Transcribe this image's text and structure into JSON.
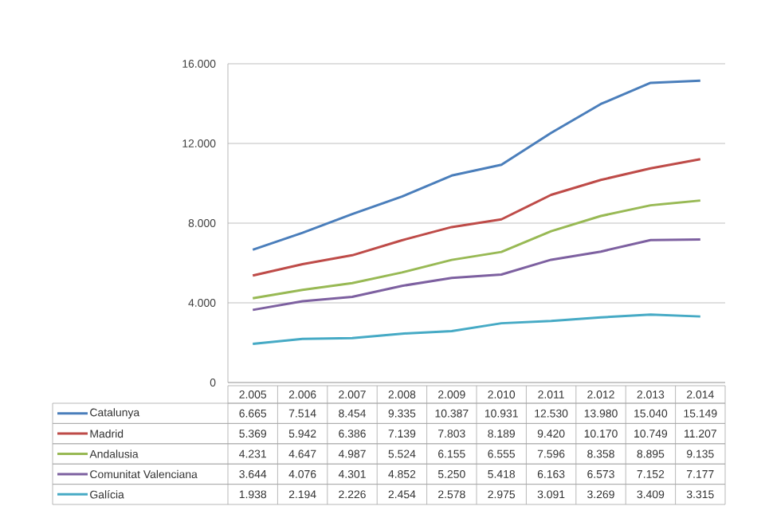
{
  "chart_data": {
    "type": "line",
    "categories": [
      "2.005",
      "2.006",
      "2.007",
      "2.008",
      "2.009",
      "2.010",
      "2.011",
      "2.012",
      "2.013",
      "2.014"
    ],
    "ylim": [
      0,
      16000
    ],
    "yticks": [
      {
        "value": 0,
        "label": "0"
      },
      {
        "value": 4000,
        "label": "4.000"
      },
      {
        "value": 8000,
        "label": "8.000"
      },
      {
        "value": 12000,
        "label": "12.000"
      },
      {
        "value": 16000,
        "label": "16.000"
      }
    ],
    "grid": "y",
    "legend": "bottom",
    "marker": "none",
    "line_style": "solid",
    "series": [
      {
        "name": "Catalunya",
        "color": "#4a7ebb",
        "values": [
          6665,
          7514,
          8454,
          9335,
          10387,
          10931,
          12530,
          13980,
          15040,
          15149
        ],
        "value_labels": [
          "6.665",
          "7.514",
          "8.454",
          "9.335",
          "10.387",
          "10.931",
          "12.530",
          "13.980",
          "15.040",
          "15.149"
        ]
      },
      {
        "name": "Madrid",
        "color": "#be4b48",
        "values": [
          5369,
          5942,
          6386,
          7139,
          7803,
          8189,
          9420,
          10170,
          10749,
          11207
        ],
        "value_labels": [
          "5.369",
          "5.942",
          "6.386",
          "7.139",
          "7.803",
          "8.189",
          "9.420",
          "10.170",
          "10.749",
          "11.207"
        ]
      },
      {
        "name": "Andalusia",
        "color": "#98b954",
        "values": [
          4231,
          4647,
          4987,
          5524,
          6155,
          6555,
          7596,
          8358,
          8895,
          9135
        ],
        "value_labels": [
          "4.231",
          "4.647",
          "4.987",
          "5.524",
          "6.155",
          "6.555",
          "7.596",
          "8.358",
          "8.895",
          "9.135"
        ]
      },
      {
        "name": "Comunitat Valenciana",
        "color": "#7d60a0",
        "values": [
          3644,
          4076,
          4301,
          4852,
          5250,
          5418,
          6163,
          6573,
          7152,
          7177
        ],
        "value_labels": [
          "3.644",
          "4.076",
          "4.301",
          "4.852",
          "5.250",
          "5.418",
          "6.163",
          "6.573",
          "7.152",
          "7.177"
        ]
      },
      {
        "name": "Galícia",
        "color": "#46aac5",
        "values": [
          1938,
          2194,
          2226,
          2454,
          2578,
          2975,
          3091,
          3269,
          3409,
          3315
        ],
        "value_labels": [
          "1.938",
          "2.194",
          "2.226",
          "2.454",
          "2.578",
          "2.975",
          "3.091",
          "3.269",
          "3.409",
          "3.315"
        ]
      }
    ]
  }
}
